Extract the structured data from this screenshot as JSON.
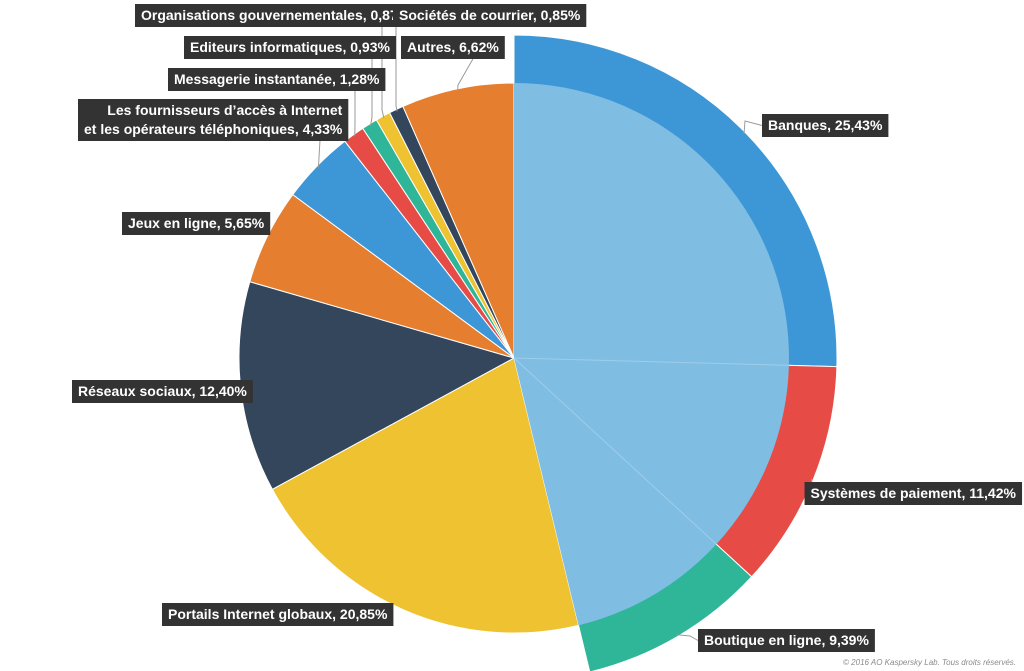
{
  "chart_data": {
    "type": "pie",
    "slices": [
      {
        "label": "Banques, 25,43%",
        "value": 25.43,
        "color": "#3d97d6",
        "inner_color": "#7fbde3"
      },
      {
        "label": "Systèmes de paiement, 11,42%",
        "value": 11.42,
        "color": "#e64c45",
        "inner_color": "#7fbde3"
      },
      {
        "label": "Boutique en ligne, 9,39%",
        "value": 9.39,
        "color": "#2fb597",
        "inner_color": "#7fbde3"
      },
      {
        "label": "Portails Internet globaux, 20,85%",
        "value": 20.85,
        "color": "#eec230"
      },
      {
        "label": "Réseaux sociaux, 12,40%",
        "value": 12.4,
        "color": "#33465b"
      },
      {
        "label": "Jeux en ligne, 5,65%",
        "value": 5.65,
        "color": "#e57e2f"
      },
      {
        "label": [
          "Les fournisseurs d’accès à Internet",
          "et les opérateurs téléphoniques, 4,33%"
        ],
        "value": 4.33,
        "color": "#3d97d6"
      },
      {
        "label": "Messagerie instantanée, 1,28%",
        "value": 1.28,
        "color": "#e64c45"
      },
      {
        "label": "Editeurs informatiques, 0,93%",
        "value": 0.93,
        "color": "#2fb597"
      },
      {
        "label": "Organisations gouvernementales, 0,87%",
        "value": 0.87,
        "color": "#eec230"
      },
      {
        "label": "Sociétés de courrier, 0,85%",
        "value": 0.85,
        "color": "#33465b"
      },
      {
        "label": "Autres, 6,62%",
        "value": 6.62,
        "color": "#e57e2f"
      }
    ],
    "inner_group_fraction": 46.24
  },
  "copyright": "© 2016 AO Kaspersky Lab. Tous droits réservés."
}
